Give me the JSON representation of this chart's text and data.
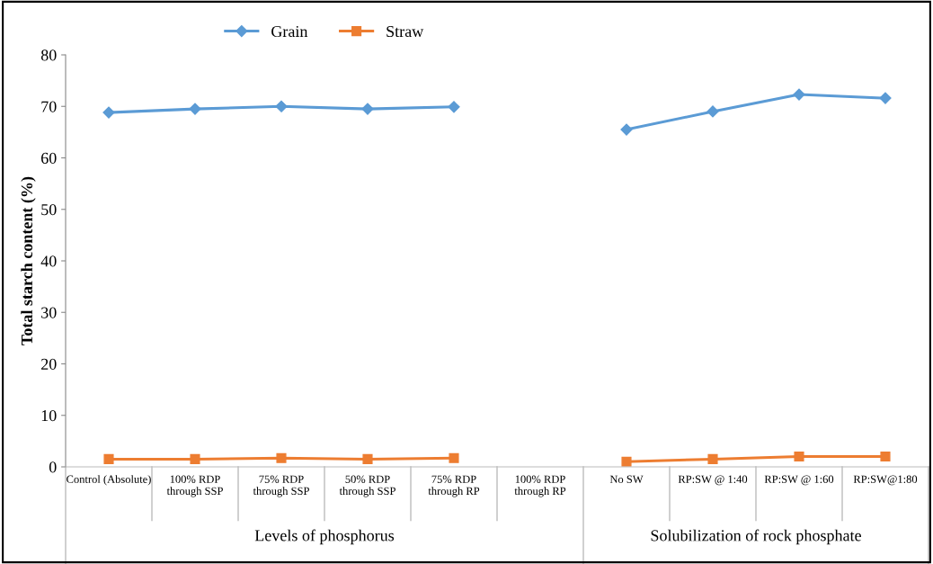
{
  "chart_data": {
    "type": "line",
    "ylabel": "Total starch content (%)",
    "categories": [
      "Control (Absolute)",
      "100% RDP through SSP",
      "75% RDP through SSP",
      "50% RDP through SSP",
      "75% RDP through RP",
      "100% RDP through RP",
      "No SW",
      "RP:SW @ 1:40",
      "RP:SW @ 1:60",
      "RP:SW@1:80"
    ],
    "series": [
      {
        "name": "Grain",
        "color": "#5b9bd5",
        "marker": "diamond",
        "values": [
          68.8,
          69.5,
          70.0,
          69.5,
          69.9,
          null,
          65.5,
          69.0,
          72.3,
          71.6
        ]
      },
      {
        "name": "Straw",
        "color": "#ed7d31",
        "marker": "square",
        "values": [
          1.5,
          1.5,
          1.7,
          1.5,
          1.7,
          null,
          1.0,
          1.5,
          2.0,
          2.0
        ]
      }
    ],
    "annotations": [
      "Levels of phosphorus",
      "Solubilization of rock phosphate"
    ],
    "ylim": [
      0,
      80
    ],
    "yticks": [
      0,
      10,
      20,
      30,
      40,
      50,
      60,
      70,
      80
    ],
    "grid": false,
    "legend": "top"
  }
}
